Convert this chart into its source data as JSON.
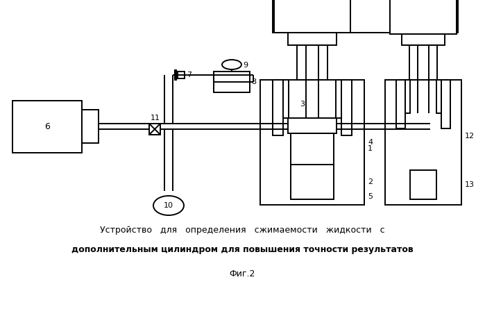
{
  "bg_color": "#ffffff",
  "line_color": "#000000",
  "title_line1": "Устройство   для   определения   сжимаемости   жидкости   с",
  "title_line2": "дополнительным цилиндром для повышения точности результатов",
  "fig_label": "Фиг.2"
}
